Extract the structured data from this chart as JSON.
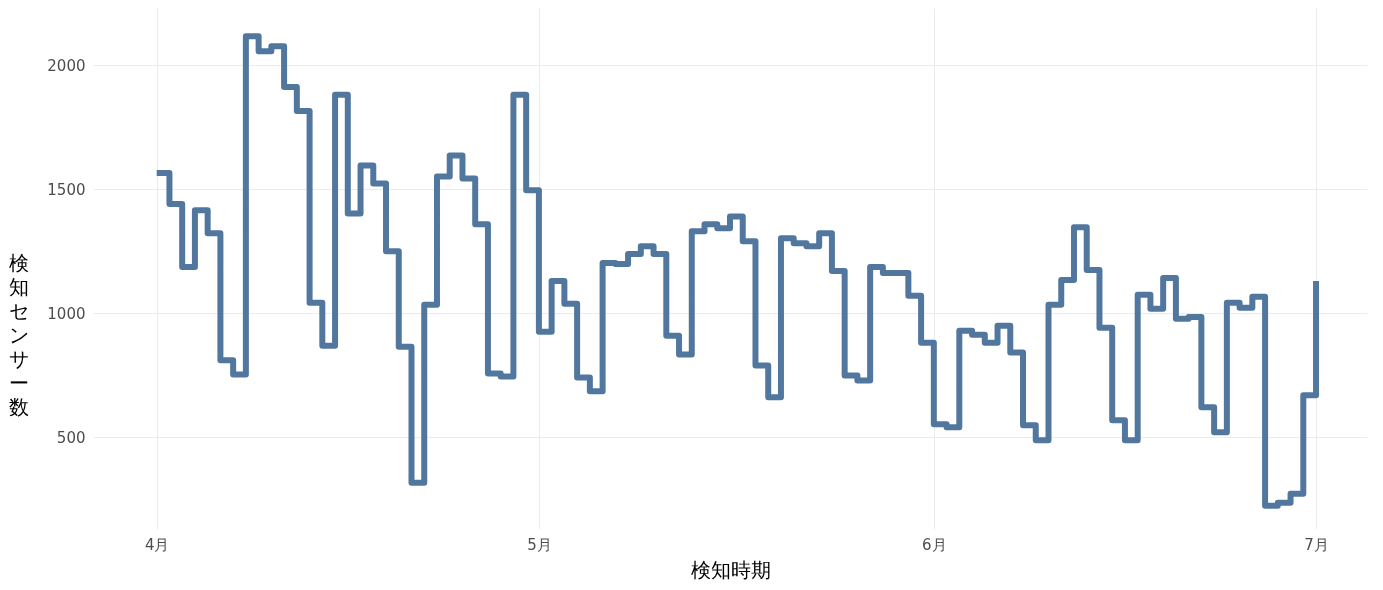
{
  "chart_data": {
    "type": "step",
    "xlabel": "検知時期",
    "ylabel": "検知センサー数",
    "x": [
      "--04-01",
      "--04-02",
      "--04-03",
      "--04-04",
      "--04-05",
      "--04-06",
      "--04-07",
      "--04-08",
      "--04-09",
      "--04-10",
      "--04-11",
      "--04-12",
      "--04-13",
      "--04-14",
      "--04-15",
      "--04-16",
      "--04-17",
      "--04-18",
      "--04-19",
      "--04-20",
      "--04-21",
      "--04-22",
      "--04-23",
      "--04-24",
      "--04-25",
      "--04-26",
      "--04-27",
      "--04-28",
      "--04-29",
      "--04-30",
      "--05-01",
      "--05-02",
      "--05-03",
      "--05-04",
      "--05-05",
      "--05-06",
      "--05-07",
      "--05-08",
      "--05-09",
      "--05-10",
      "--05-11",
      "--05-12",
      "--05-13",
      "--05-14",
      "--05-15",
      "--05-16",
      "--05-17",
      "--05-18",
      "--05-19",
      "--05-20",
      "--05-21",
      "--05-22",
      "--05-23",
      "--05-24",
      "--05-25",
      "--05-26",
      "--05-27",
      "--05-28",
      "--05-29",
      "--05-30",
      "--05-31",
      "--06-01",
      "--06-02",
      "--06-03",
      "--06-04",
      "--06-05",
      "--06-06",
      "--06-07",
      "--06-08",
      "--06-09",
      "--06-10",
      "--06-11",
      "--06-12",
      "--06-13",
      "--06-14",
      "--06-15",
      "--06-16",
      "--06-17",
      "--06-18",
      "--06-19",
      "--06-20",
      "--06-21",
      "--06-22",
      "--06-23",
      "--06-24",
      "--06-25",
      "--06-26",
      "--06-27",
      "--06-28",
      "--06-29",
      "--06-30",
      "--07-01"
    ],
    "series": [
      {
        "color": "#52779f",
        "values": [
          1565,
          1440,
          1186,
          1415,
          1322,
          810,
          753,
          2116,
          2056,
          2076,
          1912,
          1815,
          1042,
          869,
          1880,
          1402,
          1595,
          1523,
          1250,
          865,
          316,
          1034,
          1551,
          1635,
          1543,
          1358,
          757,
          745,
          1880,
          1495,
          925,
          1130,
          1038,
          741,
          685,
          1202,
          1198,
          1238,
          1270,
          1238,
          909,
          833,
          1330,
          1358,
          1342,
          1390,
          1290,
          789,
          661,
          1302,
          1282,
          1270,
          1322,
          1170,
          749,
          729,
          1186,
          1162,
          1162,
          1070,
          881,
          552,
          540,
          929,
          913,
          881,
          949,
          841,
          548,
          488,
          1034,
          1134,
          1346,
          1174,
          941,
          568,
          488,
          1074,
          1018,
          1142,
          977,
          985,
          621,
          520,
          1042,
          1022,
          1066,
          224,
          236,
          272,
          669,
          1130
        ]
      }
    ],
    "xlim": [
      "--03-27",
      "--07-05"
    ],
    "xticks": [
      {
        "value": "--04-01",
        "label": "4月"
      },
      {
        "value": "--05-01",
        "label": "5月"
      },
      {
        "value": "--06-01",
        "label": "6月"
      },
      {
        "value": "--07-01",
        "label": "7月"
      }
    ],
    "ylim": [
      130,
      2230
    ],
    "yticks": [
      500,
      1000,
      1500,
      2000
    ],
    "grid": true,
    "line_style": "solid"
  }
}
